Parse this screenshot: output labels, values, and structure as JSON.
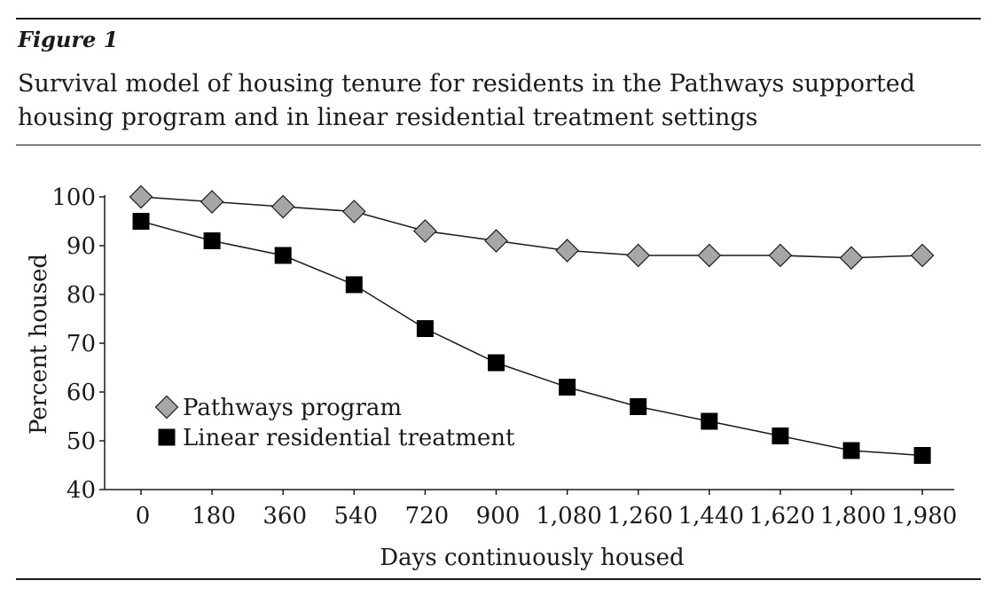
{
  "figure": {
    "label": "Figure 1",
    "title": "Survival model of housing tenure for residents in the Pathways supported housing program and in linear residential treatment  settings"
  },
  "chart_data": {
    "type": "line",
    "x": [
      0,
      180,
      360,
      540,
      720,
      900,
      1080,
      1260,
      1440,
      1620,
      1800,
      1980
    ],
    "x_tick_labels": [
      "0",
      "180",
      "360",
      "540",
      "720",
      "900",
      "1,080",
      "1,260",
      "1,440",
      "1,620",
      "1,800",
      "1,980"
    ],
    "y_ticks": [
      40,
      50,
      60,
      70,
      80,
      90,
      100
    ],
    "ylim": [
      40,
      100
    ],
    "xlabel": "Days continuously housed",
    "ylabel": "Percent housed",
    "grid": false,
    "legend_position": "bottom-left",
    "series": [
      {
        "name": "Pathways program",
        "marker": "diamond",
        "color": "#a6a6a6",
        "values": [
          100,
          99,
          98,
          97,
          93,
          91,
          89,
          88,
          88,
          88,
          87.5,
          88
        ]
      },
      {
        "name": "Linear residential treatment",
        "marker": "square",
        "color": "#000000",
        "values": [
          95,
          91,
          88,
          82,
          73,
          66,
          61,
          57,
          54,
          51,
          48,
          47
        ]
      }
    ]
  }
}
